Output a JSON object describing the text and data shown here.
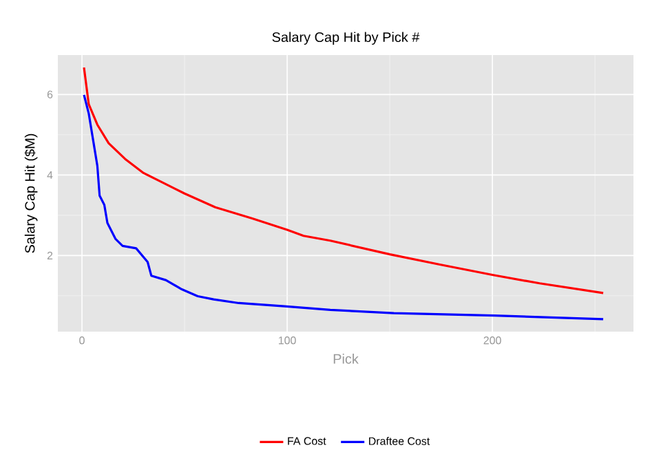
{
  "chart_data": {
    "type": "line",
    "title": "Salary Cap Hit by Pick #",
    "xlabel": "Pick",
    "ylabel": "Salary Cap Hit ($M)",
    "xlim": [
      -11.75,
      268.75
    ],
    "ylim": [
      0.11,
      6.98
    ],
    "xticks": [
      0,
      100,
      200
    ],
    "yticks": [
      2,
      4,
      6
    ],
    "grid": true,
    "legend": "bottom",
    "series": [
      {
        "name": "FA Cost",
        "color": "#ff0000",
        "x": [
          1,
          3.3,
          7.5,
          13,
          21,
          30,
          38.7,
          50,
          65,
          83,
          100,
          108,
          121,
          150,
          174,
          200,
          223,
          254
        ],
        "values": [
          6.67,
          5.76,
          5.25,
          4.79,
          4.4,
          4.05,
          3.83,
          3.54,
          3.2,
          2.92,
          2.64,
          2.49,
          2.37,
          2.03,
          1.78,
          1.52,
          1.31,
          1.07
        ]
      },
      {
        "name": "Draftee Cost",
        "color": "#0000ff",
        "x": [
          1,
          3.3,
          5.5,
          7.5,
          8.6,
          10.9,
          12.4,
          16.4,
          19.8,
          26.4,
          32,
          33.8,
          40.9,
          48.7,
          56.4,
          64.2,
          76.4,
          98.7,
          121,
          152,
          201,
          254
        ],
        "values": [
          5.99,
          5.53,
          4.85,
          4.23,
          3.49,
          3.26,
          2.81,
          2.41,
          2.24,
          2.18,
          1.84,
          1.5,
          1.39,
          1.16,
          0.99,
          0.91,
          0.82,
          0.74,
          0.65,
          0.57,
          0.51,
          0.42
        ]
      }
    ]
  }
}
